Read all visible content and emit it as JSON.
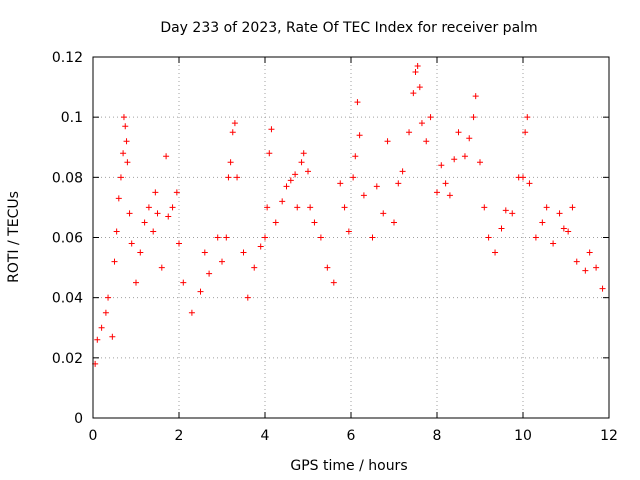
{
  "chart_data": {
    "type": "scatter",
    "title": "Day 233 of 2023, Rate Of TEC Index for receiver palm",
    "xlabel": "GPS time / hours",
    "ylabel": "ROTI / TECUs",
    "xlim": [
      0,
      12
    ],
    "ylim": [
      0,
      0.12
    ],
    "x_ticks": [
      0,
      2,
      4,
      6,
      8,
      10,
      12
    ],
    "y_ticks": [
      0,
      0.02,
      0.04,
      0.06,
      0.08,
      0.1,
      0.12
    ],
    "x_tick_labels": [
      "0",
      "2",
      "4",
      "6",
      "8",
      "10",
      "12"
    ],
    "y_tick_labels": [
      "0",
      "0.02",
      "0.04",
      "0.06",
      "0.08",
      "0.1",
      "0.12"
    ],
    "grid": true,
    "marker": "+",
    "color": "#ff0000",
    "series": [
      {
        "name": "ROTI",
        "points": [
          [
            0.05,
            0.018
          ],
          [
            0.1,
            0.026
          ],
          [
            0.2,
            0.03
          ],
          [
            0.3,
            0.035
          ],
          [
            0.35,
            0.04
          ],
          [
            0.45,
            0.027
          ],
          [
            0.5,
            0.052
          ],
          [
            0.55,
            0.062
          ],
          [
            0.6,
            0.073
          ],
          [
            0.65,
            0.08
          ],
          [
            0.7,
            0.088
          ],
          [
            0.72,
            0.1
          ],
          [
            0.75,
            0.097
          ],
          [
            0.78,
            0.092
          ],
          [
            0.8,
            0.085
          ],
          [
            0.85,
            0.068
          ],
          [
            0.9,
            0.058
          ],
          [
            1.0,
            0.045
          ],
          [
            1.1,
            0.055
          ],
          [
            1.2,
            0.065
          ],
          [
            1.3,
            0.07
          ],
          [
            1.4,
            0.062
          ],
          [
            1.45,
            0.075
          ],
          [
            1.5,
            0.068
          ],
          [
            1.6,
            0.05
          ],
          [
            1.7,
            0.087
          ],
          [
            1.75,
            0.067
          ],
          [
            1.85,
            0.07
          ],
          [
            1.95,
            0.075
          ],
          [
            2.0,
            0.058
          ],
          [
            2.1,
            0.045
          ],
          [
            2.3,
            0.035
          ],
          [
            2.5,
            0.042
          ],
          [
            2.6,
            0.055
          ],
          [
            2.7,
            0.048
          ],
          [
            2.9,
            0.06
          ],
          [
            3.0,
            0.052
          ],
          [
            3.1,
            0.06
          ],
          [
            3.15,
            0.08
          ],
          [
            3.2,
            0.085
          ],
          [
            3.25,
            0.095
          ],
          [
            3.3,
            0.098
          ],
          [
            3.35,
            0.08
          ],
          [
            3.5,
            0.055
          ],
          [
            3.6,
            0.04
          ],
          [
            3.75,
            0.05
          ],
          [
            3.9,
            0.057
          ],
          [
            4.0,
            0.06
          ],
          [
            4.05,
            0.07
          ],
          [
            4.1,
            0.088
          ],
          [
            4.15,
            0.096
          ],
          [
            4.25,
            0.065
          ],
          [
            4.4,
            0.072
          ],
          [
            4.5,
            0.077
          ],
          [
            4.6,
            0.079
          ],
          [
            4.7,
            0.081
          ],
          [
            4.75,
            0.07
          ],
          [
            4.85,
            0.085
          ],
          [
            4.9,
            0.088
          ],
          [
            5.0,
            0.082
          ],
          [
            5.05,
            0.07
          ],
          [
            5.15,
            0.065
          ],
          [
            5.3,
            0.06
          ],
          [
            5.45,
            0.05
          ],
          [
            5.6,
            0.045
          ],
          [
            5.75,
            0.078
          ],
          [
            5.85,
            0.07
          ],
          [
            5.95,
            0.062
          ],
          [
            6.05,
            0.08
          ],
          [
            6.1,
            0.087
          ],
          [
            6.15,
            0.105
          ],
          [
            6.2,
            0.094
          ],
          [
            6.3,
            0.074
          ],
          [
            6.5,
            0.06
          ],
          [
            6.6,
            0.077
          ],
          [
            6.75,
            0.068
          ],
          [
            6.85,
            0.092
          ],
          [
            7.0,
            0.065
          ],
          [
            7.1,
            0.078
          ],
          [
            7.2,
            0.082
          ],
          [
            7.35,
            0.095
          ],
          [
            7.45,
            0.108
          ],
          [
            7.5,
            0.115
          ],
          [
            7.55,
            0.117
          ],
          [
            7.6,
            0.11
          ],
          [
            7.65,
            0.098
          ],
          [
            7.75,
            0.092
          ],
          [
            7.85,
            0.1
          ],
          [
            8.0,
            0.075
          ],
          [
            8.1,
            0.084
          ],
          [
            8.2,
            0.078
          ],
          [
            8.3,
            0.074
          ],
          [
            8.4,
            0.086
          ],
          [
            8.5,
            0.095
          ],
          [
            8.65,
            0.087
          ],
          [
            8.75,
            0.093
          ],
          [
            8.85,
            0.1
          ],
          [
            8.9,
            0.107
          ],
          [
            9.0,
            0.085
          ],
          [
            9.1,
            0.07
          ],
          [
            9.2,
            0.06
          ],
          [
            9.35,
            0.055
          ],
          [
            9.5,
            0.063
          ],
          [
            9.6,
            0.069
          ],
          [
            9.75,
            0.068
          ],
          [
            9.9,
            0.08
          ],
          [
            10.0,
            0.08
          ],
          [
            10.05,
            0.095
          ],
          [
            10.1,
            0.1
          ],
          [
            10.15,
            0.078
          ],
          [
            10.3,
            0.06
          ],
          [
            10.45,
            0.065
          ],
          [
            10.55,
            0.07
          ],
          [
            10.7,
            0.058
          ],
          [
            10.85,
            0.068
          ],
          [
            10.95,
            0.063
          ],
          [
            11.05,
            0.062
          ],
          [
            11.15,
            0.07
          ],
          [
            11.25,
            0.052
          ],
          [
            11.45,
            0.049
          ],
          [
            11.55,
            0.055
          ],
          [
            11.7,
            0.05
          ],
          [
            11.85,
            0.043
          ]
        ]
      }
    ]
  }
}
